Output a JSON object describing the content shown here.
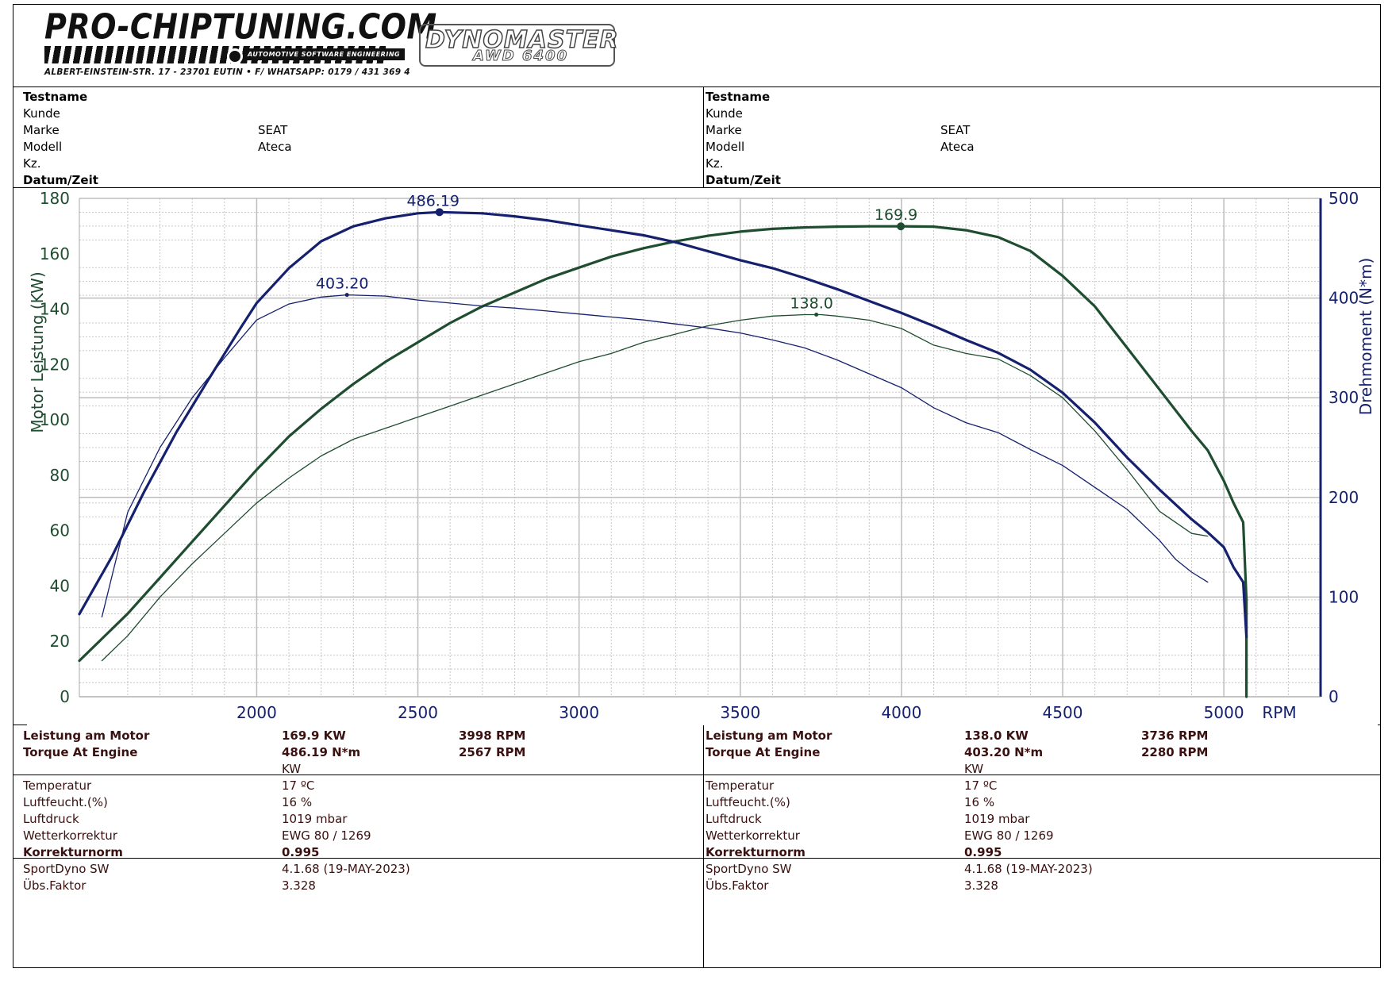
{
  "header": {
    "logo_title": "PRO-CHIPTUNING.COM",
    "logo_subtitle": "AUTOMOTIVE SOFTWARE ENGINEERING",
    "logo_address": "ALBERT-EINSTEIN-STR. 17 - 23701 EUTIN • F/ WHATSAPP: 0179 / 431 369 4",
    "dyno_brand": "DYNOMASTER",
    "dyno_model": "AWD 6400"
  },
  "runs": [
    {
      "info": {
        "testname_label": "Testname",
        "kunde_label": "Kunde",
        "marke_label": "Marke",
        "marke_value": "SEAT",
        "modell_label": "Modell",
        "modell_value": "Ateca",
        "kz_label": "Kz.",
        "datum_label": "Datum/Zeit"
      },
      "results": {
        "power_label": "Leistung am Motor",
        "power_value": "169.9 KW",
        "power_rpm": "3998 RPM",
        "torque_label": "Torque At Engine",
        "torque_value": "486.19 N*m",
        "torque_rpm": "2567 RPM",
        "unit": "KW"
      },
      "conditions": {
        "temp_label": "Temperatur",
        "temp_value": "17 ºC",
        "humidity_label": "Luftfeucht.(%)",
        "humidity_value": "16 %",
        "pressure_label": "Luftdruck",
        "pressure_value": "1019 mbar",
        "weather_label": "Wetterkorrektur",
        "weather_value": "EWG 80 / 1269",
        "norm_label": "Korrekturnorm",
        "norm_value": "0.995"
      },
      "software": {
        "sw_label": "SportDyno SW",
        "sw_value": "4.1.68 (19-MAY-2023)",
        "factor_label": "Übs.Faktor",
        "factor_value": "3.328"
      }
    },
    {
      "info": {
        "testname_label": "Testname",
        "kunde_label": "Kunde",
        "marke_label": "Marke",
        "marke_value": "SEAT",
        "modell_label": "Modell",
        "modell_value": "Ateca",
        "kz_label": "Kz.",
        "datum_label": "Datum/Zeit"
      },
      "results": {
        "power_label": "Leistung am Motor",
        "power_value": "138.0 KW",
        "power_rpm": "3736 RPM",
        "torque_label": "Torque At Engine",
        "torque_value": "403.20 N*m",
        "torque_rpm": "2280 RPM",
        "unit": "KW"
      },
      "conditions": {
        "temp_label": "Temperatur",
        "temp_value": "17 ºC",
        "humidity_label": "Luftfeucht.(%)",
        "humidity_value": "16 %",
        "pressure_label": "Luftdruck",
        "pressure_value": "1019 mbar",
        "weather_label": "Wetterkorrektur",
        "weather_value": "EWG 80 / 1269",
        "norm_label": "Korrekturnorm",
        "norm_value": "0.995"
      },
      "software": {
        "sw_label": "SportDyno SW",
        "sw_value": "4.1.68 (19-MAY-2023)",
        "factor_label": "Übs.Faktor",
        "factor_value": "3.328"
      }
    }
  ],
  "chart_data": {
    "type": "line",
    "title": "",
    "xlabel": "RPM",
    "ylabel_left": "Motor Leistung (KW)",
    "ylabel_right": "Drehmoment (N*m)",
    "xlim": [
      1450,
      5300
    ],
    "ylim_left": [
      0,
      180
    ],
    "ylim_right": [
      0,
      500
    ],
    "x_ticks": [
      2000,
      2500,
      3000,
      3500,
      4000,
      4500,
      5000
    ],
    "y_ticks_left": [
      0,
      20,
      40,
      60,
      80,
      100,
      120,
      140,
      160,
      180
    ],
    "y_ticks_right": [
      0,
      100,
      200,
      300,
      400,
      500
    ],
    "grid": true,
    "colors": {
      "power": "#1e4d30",
      "torque": "#15206e",
      "axis_left": "#1e4d30",
      "axis_right": "#15206e"
    },
    "series": [
      {
        "axis": "left",
        "kind": "power",
        "tuned": true,
        "x": [
          1450,
          1600,
          1700,
          1800,
          1900,
          2000,
          2100,
          2200,
          2300,
          2400,
          2500,
          2600,
          2700,
          2800,
          2900,
          3000,
          3100,
          3200,
          3300,
          3400,
          3500,
          3600,
          3700,
          3800,
          3900,
          4000,
          4100,
          4200,
          4300,
          4400,
          4500,
          4600,
          4700,
          4800,
          4900,
          4950,
          5000,
          5030,
          5060,
          5070,
          5070
        ],
        "y": [
          13,
          30,
          43,
          56,
          69,
          82,
          94,
          104,
          113,
          121,
          128,
          135,
          141,
          146,
          151,
          155,
          159,
          162,
          164.5,
          166.5,
          168,
          169,
          169.5,
          169.8,
          169.9,
          169.9,
          169.8,
          168.5,
          166,
          161,
          152,
          141,
          126,
          111,
          96,
          89,
          78,
          70,
          63,
          35,
          0
        ],
        "peak": {
          "x": 3998,
          "y": 169.9,
          "label": "169.9"
        }
      },
      {
        "axis": "left",
        "kind": "power",
        "tuned": false,
        "x": [
          1520,
          1600,
          1700,
          1800,
          1900,
          2000,
          2100,
          2200,
          2300,
          2400,
          2500,
          2600,
          2700,
          2800,
          2900,
          3000,
          3100,
          3200,
          3300,
          3400,
          3500,
          3600,
          3700,
          3750,
          3800,
          3900,
          4000,
          4100,
          4200,
          4300,
          4400,
          4500,
          4600,
          4700,
          4800,
          4900,
          4950
        ],
        "y": [
          13,
          22,
          36,
          48,
          59,
          70,
          79,
          87,
          93,
          97,
          101,
          105,
          109,
          113,
          117,
          121,
          124,
          128,
          131,
          134,
          136,
          137.5,
          138,
          138,
          137.5,
          136,
          133,
          127,
          124,
          122,
          116,
          108,
          96,
          82,
          67,
          59,
          58
        ],
        "peak": {
          "x": 3736,
          "y": 138.0,
          "label": "138.0"
        }
      },
      {
        "axis": "right",
        "kind": "torque",
        "tuned": true,
        "x": [
          1450,
          1550,
          1650,
          1750,
          1850,
          1950,
          2000,
          2100,
          2200,
          2300,
          2400,
          2500,
          2567,
          2700,
          2800,
          2900,
          3000,
          3100,
          3200,
          3300,
          3400,
          3500,
          3600,
          3700,
          3800,
          3900,
          4000,
          4100,
          4200,
          4300,
          4400,
          4500,
          4600,
          4700,
          4800,
          4900,
          4950,
          5000,
          5030,
          5060,
          5070
        ],
        "y": [
          83,
          140,
          205,
          265,
          318,
          370,
          395,
          430,
          457,
          472,
          480,
          485,
          486.2,
          485,
          482,
          478,
          473,
          468,
          463,
          456,
          447,
          438,
          430,
          420,
          409,
          397,
          385,
          372,
          358,
          345,
          328,
          305,
          275,
          240,
          208,
          178,
          165,
          150,
          130,
          115,
          60
        ]
      },
      {
        "axis": "right",
        "kind": "torque",
        "tuned": false,
        "x": [
          1520,
          1600,
          1700,
          1800,
          1900,
          2000,
          2100,
          2200,
          2280,
          2400,
          2500,
          2600,
          2700,
          2800,
          2900,
          3000,
          3100,
          3200,
          3300,
          3400,
          3500,
          3600,
          3700,
          3800,
          3900,
          4000,
          4100,
          4200,
          4300,
          4400,
          4500,
          4600,
          4700,
          4800,
          4850,
          4900,
          4950
        ],
        "y": [
          80,
          185,
          250,
          300,
          340,
          378,
          394,
          401,
          403.2,
          402,
          398,
          395,
          392,
          390,
          387,
          384,
          381,
          378,
          374,
          370,
          365,
          358,
          350,
          338,
          324,
          310,
          290,
          275,
          265,
          248,
          232,
          210,
          188,
          157,
          138,
          125,
          115
        ]
      }
    ],
    "annotations": [
      {
        "x": 2567,
        "axis": "right",
        "y": 486.19,
        "label": "486.19"
      },
      {
        "x": 2280,
        "axis": "right",
        "y": 403.2,
        "label": "403.20"
      }
    ]
  }
}
